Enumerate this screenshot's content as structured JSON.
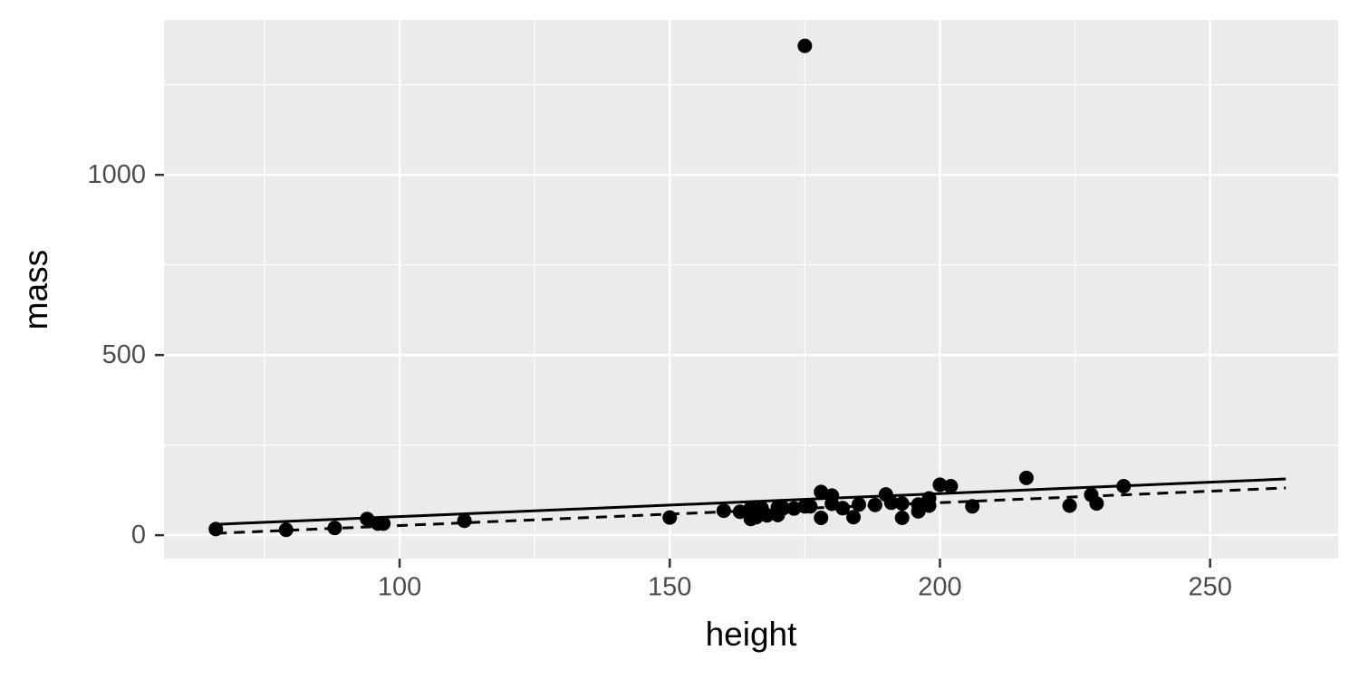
{
  "chart_data": {
    "type": "scatter",
    "x_label": "height",
    "y_label": "mass",
    "series": [
      {
        "color": "#000000",
        "x": [
          66,
          79,
          88,
          94,
          96,
          97,
          112,
          150,
          160,
          163,
          165,
          165,
          166,
          167,
          168,
          170,
          170,
          171,
          173,
          175,
          175,
          176,
          178,
          178,
          180,
          180,
          182,
          184,
          185,
          188,
          190,
          191,
          193,
          193,
          196,
          196,
          198,
          198,
          200,
          202,
          206,
          216,
          224,
          228,
          229,
          234
        ],
        "values": [
          17,
          15,
          20,
          45,
          32,
          32,
          40,
          49,
          68,
          65,
          75,
          45,
          50,
          75,
          55,
          56,
          77,
          75,
          74,
          1358,
          80,
          80,
          120,
          48,
          110,
          87,
          75,
          50,
          85,
          84,
          113,
          90,
          88,
          48,
          66,
          85,
          82,
          102,
          140,
          136,
          80,
          159,
          82,
          112,
          88,
          136
        ]
      }
    ],
    "lines": [
      {
        "x": [
          66,
          264
        ],
        "values": [
          30,
          156
        ],
        "style": "solid",
        "color": "#000000"
      },
      {
        "x": [
          66,
          264
        ],
        "values": [
          5,
          131
        ],
        "style": "dashed",
        "color": "#000000"
      }
    ],
    "xlim": [
      56.4,
      273.7
    ],
    "ylim": [
      -65,
      1430
    ],
    "xticks": [
      100,
      150,
      200,
      250
    ],
    "yticks": [
      0,
      500,
      1000
    ],
    "xminor": [
      75,
      125,
      175,
      225
    ],
    "yminor": [
      250,
      750,
      1250
    ],
    "grid": true
  }
}
